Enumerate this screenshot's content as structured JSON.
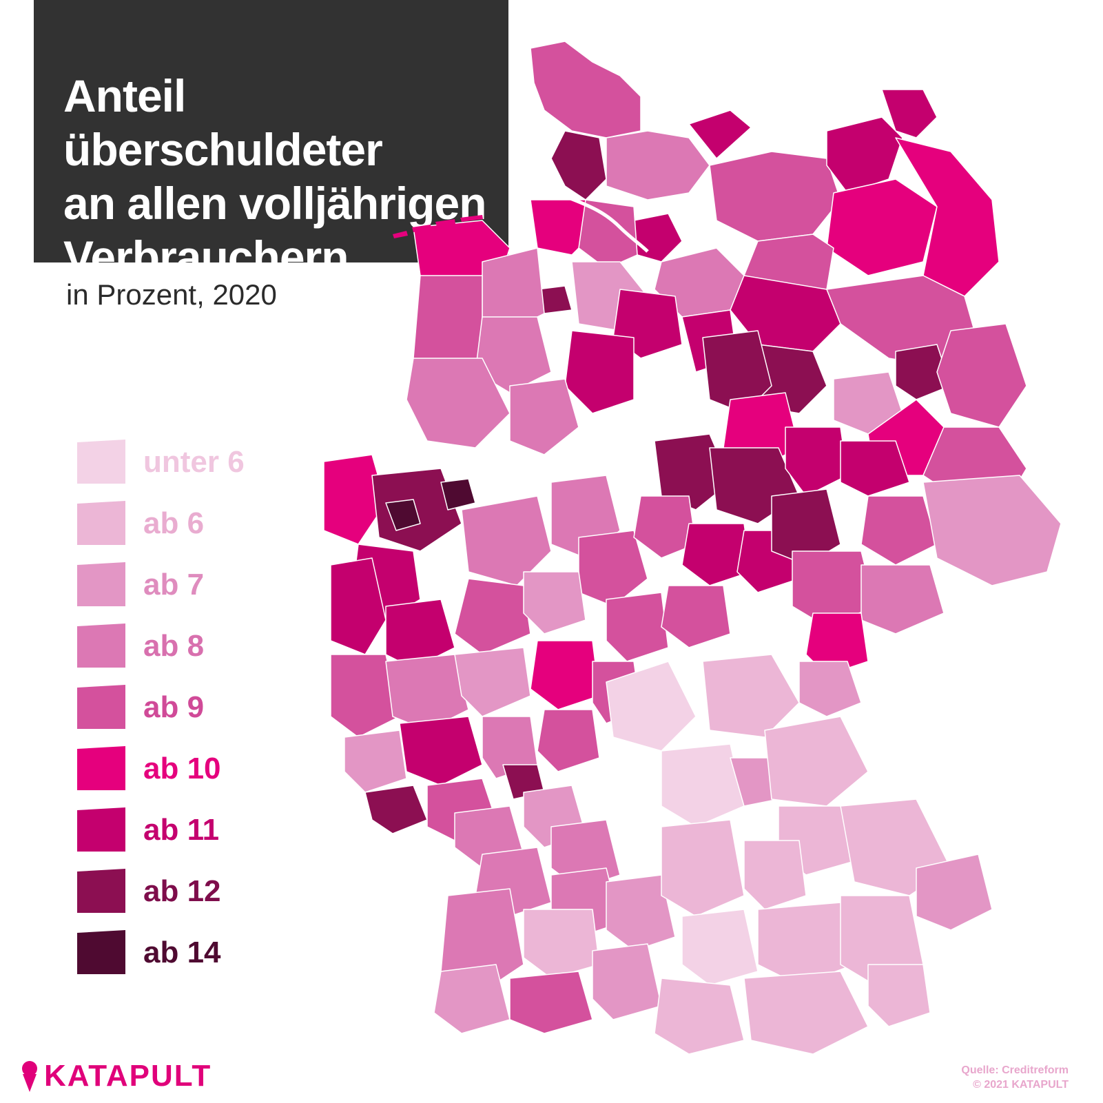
{
  "title": {
    "line1": "Anteil überschuldeter",
    "line2": "an allen volljährigen",
    "line3": "Verbrauchern"
  },
  "subtitle": "in Prozent, 2020",
  "legend": [
    {
      "label": "unter 6",
      "color": "#f3d2e6",
      "text_color": "#f0c6df"
    },
    {
      "label": "ab 6",
      "color": "#ecb6d6",
      "text_color": "#e9acd0"
    },
    {
      "label": "ab 7",
      "color": "#e396c5",
      "text_color": "#df8cbe"
    },
    {
      "label": "ab 8",
      "color": "#dc78b4",
      "text_color": "#d870ae"
    },
    {
      "label": "ab 9",
      "color": "#d4519d",
      "text_color": "#d04a98"
    },
    {
      "label": "ab 10",
      "color": "#e5007d",
      "text_color": "#e5007d"
    },
    {
      "label": "ab 11",
      "color": "#c4006e",
      "text_color": "#c4006e"
    },
    {
      "label": "ab 12",
      "color": "#8c0f52",
      "text_color": "#7e0d4b"
    },
    {
      "label": "ab 14",
      "color": "#4f0a31",
      "text_color": "#4f0a31"
    }
  ],
  "logo": {
    "text": "KATAPULT",
    "color": "#e0007a"
  },
  "source": "Quelle: Creditreform",
  "license": "© 2021 KATAPULT"
}
